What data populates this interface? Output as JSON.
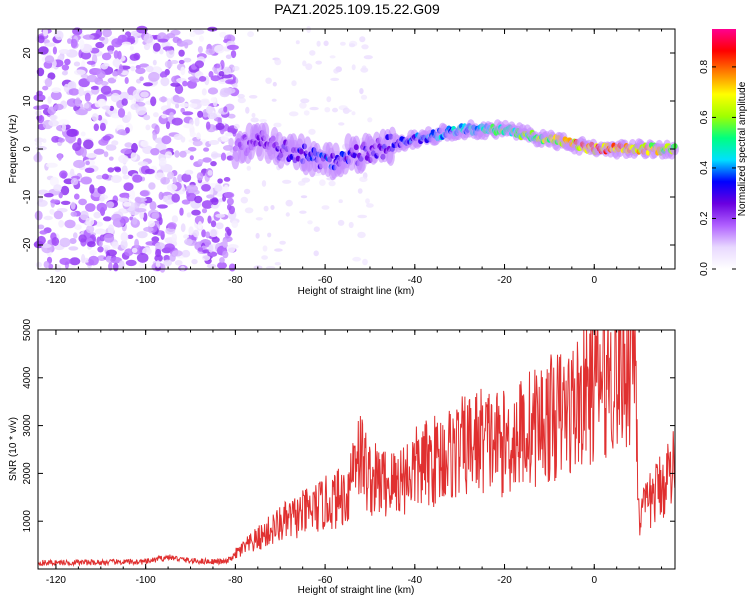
{
  "figure": {
    "title": "PAZ1.2025.109.15.22.G09"
  },
  "colors": {
    "snr_line": "#e03030",
    "frame": "#000000"
  },
  "chart_data": [
    {
      "type": "heatmap",
      "xlabel": "Height of straight line (km)",
      "ylabel": "Frequency (Hz)",
      "xlim": [
        -124,
        18
      ],
      "ylim": [
        -25,
        25
      ],
      "xticks": [
        -120,
        -100,
        -80,
        -60,
        -40,
        -20,
        0
      ],
      "yticks": [
        -20,
        -10,
        0,
        10,
        20
      ],
      "colorbar": {
        "label": "Normalized spectral amplitude",
        "range": [
          0,
          0.95
        ],
        "ticks": [
          0.0,
          0.2,
          0.4,
          0.6,
          0.8
        ],
        "colormap": [
          "#ffffff",
          "#e8d8ff",
          "#b060ff",
          "#6a00e0",
          "#0000ff",
          "#00e0ff",
          "#00ff80",
          "#a0ff00",
          "#ffff00",
          "#ff8000",
          "#ff0000",
          "#ff0090"
        ]
      },
      "ridge": {
        "description_points_x": [
          -80,
          -75,
          -70,
          -65,
          -60,
          -55,
          -50,
          -45,
          -40,
          -35,
          -30,
          -25,
          -20,
          -15,
          -10,
          -5,
          0,
          5,
          10,
          15,
          18
        ],
        "frequency_hz": [
          0,
          2,
          0,
          -1,
          -3,
          -1,
          -1,
          1,
          2,
          3,
          4,
          4,
          4,
          3,
          2,
          1,
          0,
          0,
          0,
          0,
          0
        ],
        "peak_amplitude": [
          0.2,
          0.25,
          0.3,
          0.35,
          0.4,
          0.35,
          0.3,
          0.35,
          0.4,
          0.45,
          0.5,
          0.55,
          0.6,
          0.65,
          0.7,
          0.8,
          0.9,
          0.85,
          0.8,
          0.75,
          0.7
        ]
      }
    },
    {
      "type": "line",
      "xlabel": "Height of straight line (km)",
      "ylabel": "SNR (10 * v/v)",
      "xlim": [
        -124,
        18
      ],
      "ylim": [
        0,
        5000
      ],
      "xticks": [
        -120,
        -100,
        -80,
        -60,
        -40,
        -20,
        0
      ],
      "yticks": [
        1000,
        2000,
        3000,
        4000,
        5000
      ],
      "series": [
        {
          "x": [
            -124,
            -110,
            -100,
            -95,
            -90,
            -82,
            -80,
            -75,
            -70,
            -65,
            -60,
            -55,
            -53,
            -50,
            -45,
            -40,
            -35,
            -30,
            -25,
            -20,
            -15,
            -10,
            -5,
            0,
            5,
            8,
            9,
            10,
            12,
            15,
            18
          ],
          "y": [
            130,
            140,
            150,
            250,
            170,
            150,
            300,
            600,
            900,
            1100,
            1300,
            1500,
            2500,
            1800,
            1700,
            2000,
            2200,
            2400,
            2600,
            2500,
            2800,
            3000,
            3200,
            3700,
            4000,
            4200,
            4800,
            1000,
            1300,
            1700,
            2100
          ]
        }
      ]
    }
  ]
}
